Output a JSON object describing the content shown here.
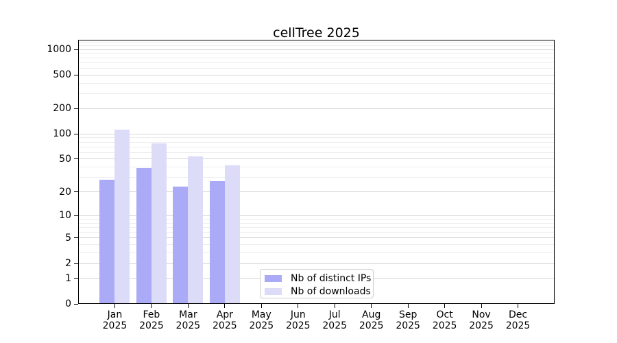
{
  "chart_data": {
    "type": "bar",
    "title": "cellTree 2025",
    "categories": [
      "Jan",
      "Feb",
      "Mar",
      "Apr",
      "May",
      "Jun",
      "Jul",
      "Aug",
      "Sep",
      "Oct",
      "Nov",
      "Dec"
    ],
    "x_year_label": "2025",
    "series": [
      {
        "name": "Nb of distinct IPs",
        "color": "#aaaaf6",
        "values": [
          28,
          39,
          23,
          27,
          0,
          0,
          0,
          0,
          0,
          0,
          0,
          0
        ]
      },
      {
        "name": "Nb of downloads",
        "color": "#dcdcf9",
        "values": [
          112,
          77,
          54,
          42,
          0,
          0,
          0,
          0,
          0,
          0,
          0,
          0
        ]
      }
    ],
    "y_axis": {
      "scale": "log10(value+1)",
      "y_max": 1300,
      "major_ticks": [
        0,
        1,
        2,
        5,
        10,
        20,
        50,
        100,
        200,
        500,
        1000
      ],
      "minor_ticks": [
        3,
        4,
        6,
        7,
        8,
        9,
        30,
        40,
        60,
        70,
        80,
        90,
        300,
        400,
        600,
        700,
        800,
        900,
        1100,
        1200
      ]
    },
    "grid": true,
    "legend": {
      "position": "inside-bottom-center"
    },
    "colors": {
      "major_grid": "#d5d5d5",
      "minor_grid": "#ececec",
      "spine": "#000000",
      "text": "#000000",
      "legend_border": "#cccccc",
      "background": "#ffffff"
    }
  }
}
